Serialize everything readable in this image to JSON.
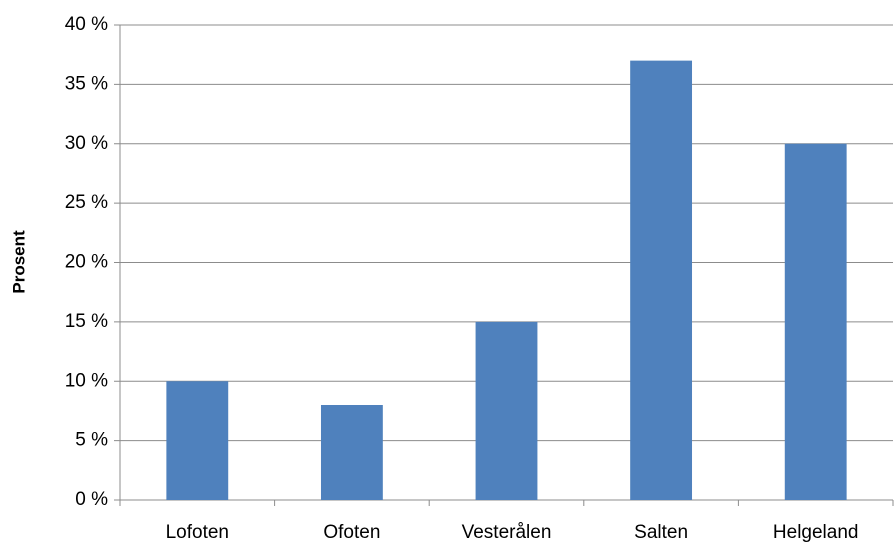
{
  "chart_data": {
    "type": "bar",
    "y_label": "Prosent",
    "categories": [
      "Lofoten",
      "Ofoten",
      "Vesterålen",
      "Salten",
      "Helgeland"
    ],
    "values": [
      10,
      8,
      15,
      37,
      30
    ],
    "color": "#4f81bd",
    "ylim": [
      0,
      40
    ],
    "yticks": [
      {
        "value": 0,
        "label": "0 %"
      },
      {
        "value": 5,
        "label": "5 %"
      },
      {
        "value": 10,
        "label": "10 %"
      },
      {
        "value": 15,
        "label": "15 %"
      },
      {
        "value": 20,
        "label": "20 %"
      },
      {
        "value": 25,
        "label": "25 %"
      },
      {
        "value": 30,
        "label": "30 %"
      },
      {
        "value": 35,
        "label": "35 %"
      },
      {
        "value": 40,
        "label": "40 %"
      }
    ],
    "grid": true
  }
}
